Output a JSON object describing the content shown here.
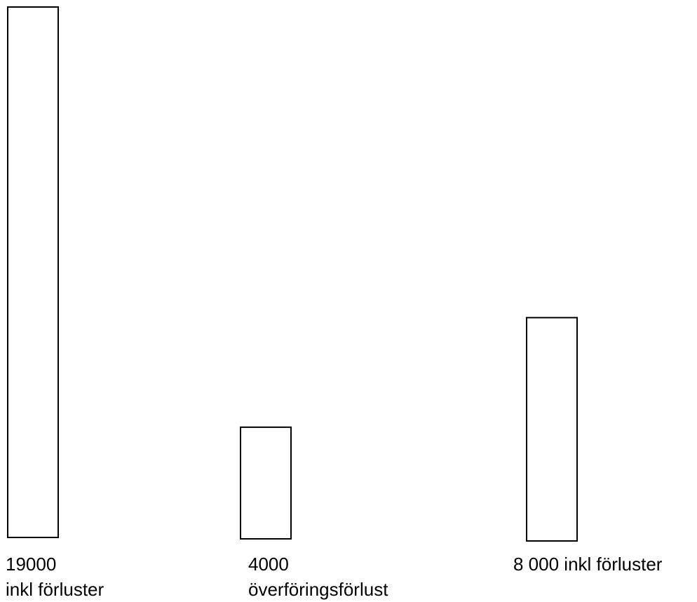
{
  "chart_data": {
    "type": "bar",
    "categories": [
      "19000 inkl förluster",
      "4000 överföringsförlust",
      "8 000 inkl förluster"
    ],
    "values": [
      19000,
      4000,
      8000
    ],
    "grid": false,
    "legend": "none",
    "bar_fill": "#ffffff",
    "bar_stroke": "#000000",
    "labels": [
      {
        "value": "19000",
        "note": "inkl förluster"
      },
      {
        "value": "4000",
        "note": "överföringsförlust"
      },
      {
        "value": "8 000  inkl förluster"
      }
    ]
  }
}
